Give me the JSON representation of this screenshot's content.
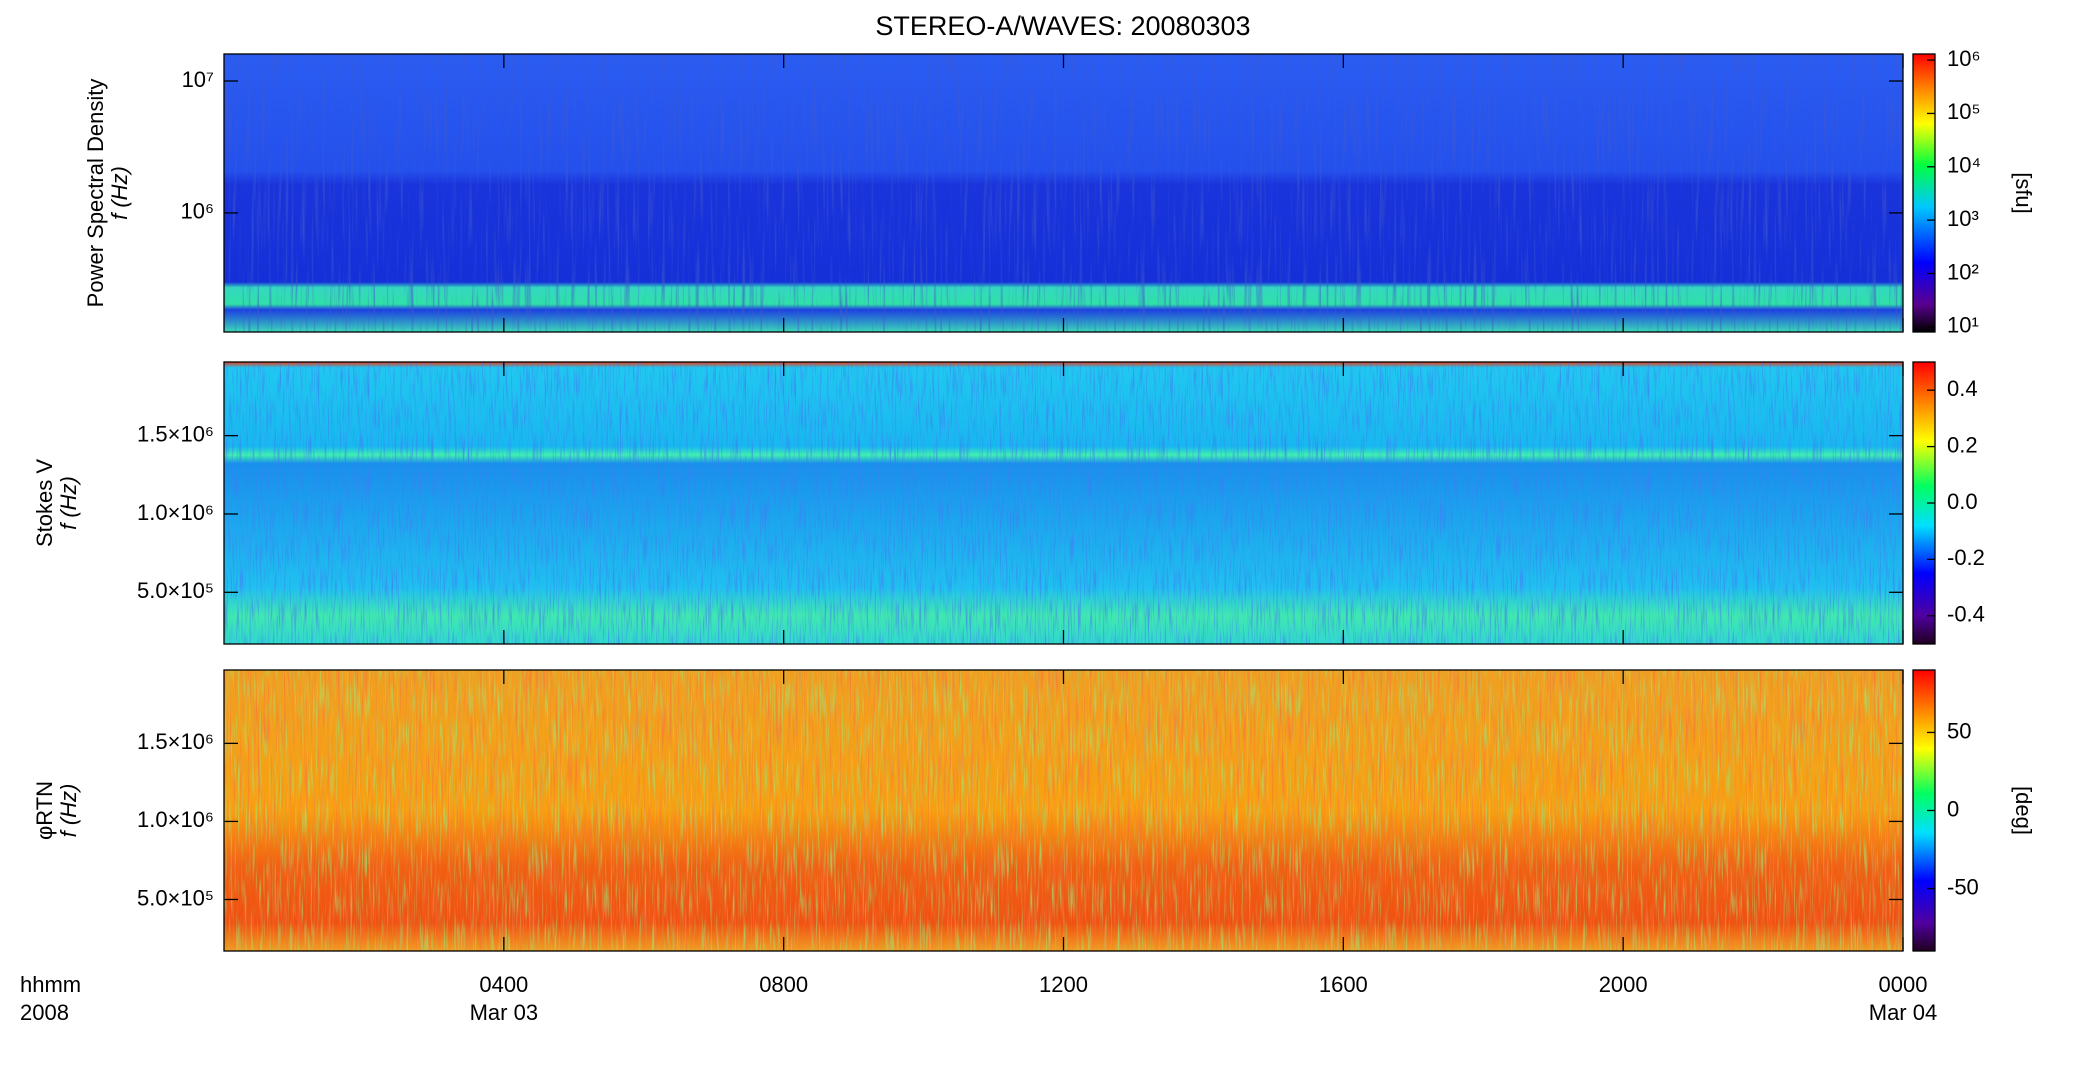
{
  "chart_data": {
    "type": "spectrogram",
    "title": "STEREO-A/WAVES: 20080303",
    "xlabel": [
      "hhmm",
      "2008"
    ],
    "xlim": [
      0,
      24
    ],
    "xticks": [
      {
        "value": 4,
        "label": "0400"
      },
      {
        "value": 8,
        "label": "0800"
      },
      {
        "value": 12,
        "label": "1200"
      },
      {
        "value": 16,
        "label": "1600"
      },
      {
        "value": 20,
        "label": "2000"
      },
      {
        "value": 24,
        "label": "0000"
      }
    ],
    "xtick_dates": [
      {
        "value": 4,
        "label": "Mar 03"
      },
      {
        "value": 24,
        "label": "Mar 04"
      }
    ],
    "panels": [
      {
        "ylabel": [
          "Power Spectral Density",
          "f (Hz)"
        ],
        "ylog": true,
        "ylim": [
          125000,
          16025000
        ],
        "yticks": [
          {
            "value": 1000000,
            "label": "10⁶"
          },
          {
            "value": 10000000,
            "label": "10⁷"
          }
        ],
        "zlog": true,
        "zlim": [
          8,
          1300000
        ],
        "zlabel": "[sfu]",
        "zticks": [
          {
            "value": 10,
            "label": "10¹"
          },
          {
            "value": 100,
            "label": "10²"
          },
          {
            "value": 1000,
            "label": "10³"
          },
          {
            "value": 10000,
            "label": "10⁴"
          },
          {
            "value": 100000,
            "label": "10⁵"
          },
          {
            "value": 1000000,
            "label": "10⁶"
          }
        ]
      },
      {
        "ylabel": [
          "Stokes V",
          "f (Hz)"
        ],
        "ylog": false,
        "ylim": [
          170000,
          1970000
        ],
        "yticks": [
          {
            "value": 500000,
            "label": "5.0×10⁵"
          },
          {
            "value": 1000000,
            "label": "1.0×10⁶"
          },
          {
            "value": 1500000,
            "label": "1.5×10⁶"
          }
        ],
        "zlog": false,
        "zlim": [
          -0.5,
          0.5
        ],
        "zlabel": "",
        "zticks": [
          -0.4,
          -0.2,
          {
            "value": 0,
            "label": "0.0"
          },
          0.2,
          0.4
        ]
      },
      {
        "ylabel": [
          "φRTN",
          "f (Hz)"
        ],
        "ylog": false,
        "ylim": [
          170000,
          1970000
        ],
        "yticks": [
          {
            "value": 500000,
            "label": "5.0×10⁵"
          },
          {
            "value": 1000000,
            "label": "1.0×10⁶"
          },
          {
            "value": 1500000,
            "label": "1.5×10⁶"
          }
        ],
        "zlog": false,
        "zlim": [
          -90,
          90
        ],
        "zlabel": "[deg]",
        "zticks": [
          -50,
          0,
          50
        ]
      }
    ]
  }
}
